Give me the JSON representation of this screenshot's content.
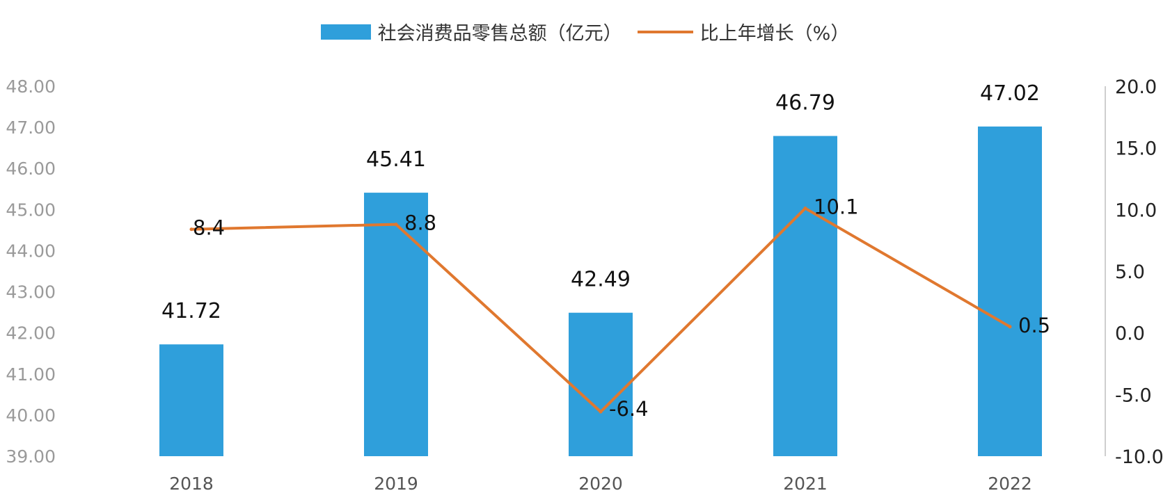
{
  "chart_data": {
    "type": "bar",
    "categories": [
      "2018",
      "2019",
      "2020",
      "2021",
      "2022"
    ],
    "series": [
      {
        "name": "社会消费品零售总额（亿元）",
        "type": "bar",
        "axis": "left",
        "color": "#2f9fdb",
        "values": [
          41.72,
          45.41,
          42.49,
          46.79,
          47.02
        ],
        "labels": [
          "41.72",
          "45.41",
          "42.49",
          "46.79",
          "47.02"
        ]
      },
      {
        "name": "比上年增长（%）",
        "type": "line",
        "axis": "right",
        "color": "#e0782f",
        "values": [
          8.4,
          8.8,
          -6.4,
          10.1,
          0.5
        ],
        "labels": [
          "8.4",
          "8.8",
          "-6.4",
          "10.1",
          "0.5"
        ]
      }
    ],
    "y_left": {
      "ylim": [
        39,
        48
      ],
      "ticks": [
        "39.00",
        "40.00",
        "41.00",
        "42.00",
        "43.00",
        "44.00",
        "45.00",
        "46.00",
        "47.00",
        "48.00"
      ]
    },
    "y_right": {
      "ylim": [
        -10,
        20
      ],
      "ticks": [
        "-10.0",
        "-5.0",
        "0.0",
        "5.0",
        "10.0",
        "15.0",
        "20.0"
      ]
    },
    "legend_position": "top-center",
    "grid": false
  }
}
